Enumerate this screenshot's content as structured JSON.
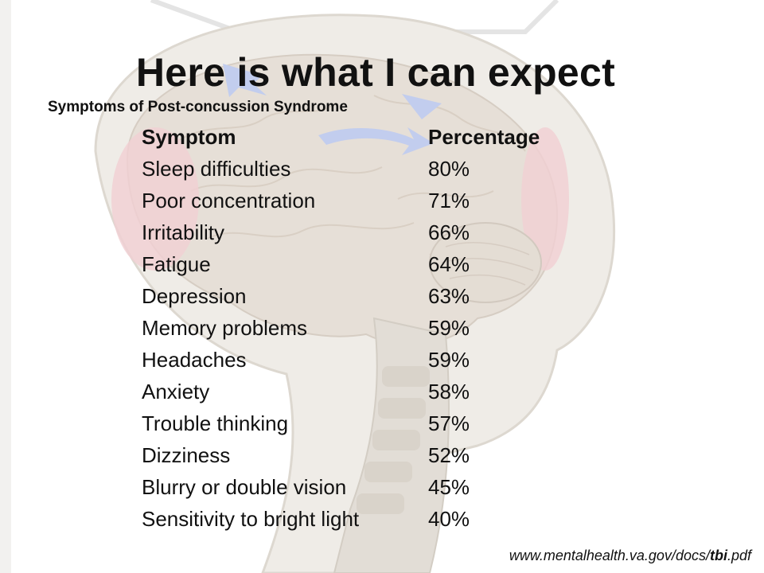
{
  "title": "Here is what I can expect",
  "subtitle": "Symptoms of Post-concussion Syndrome",
  "table": {
    "headers": {
      "symptom": "Symptom",
      "percentage": "Percentage"
    },
    "rows": [
      {
        "symptom": "Sleep difficulties",
        "percentage": "80%"
      },
      {
        "symptom": "Poor concentration",
        "percentage": "71%"
      },
      {
        "symptom": "Irritability",
        "percentage": "66%"
      },
      {
        "symptom": "Fatigue",
        "percentage": "64%"
      },
      {
        "symptom": "Depression",
        "percentage": "63%"
      },
      {
        "symptom": "Memory problems",
        "percentage": "59%"
      },
      {
        "symptom": "Headaches",
        "percentage": "59%"
      },
      {
        "symptom": "Anxiety",
        "percentage": "58%"
      },
      {
        "symptom": "Trouble thinking",
        "percentage": "57%"
      },
      {
        "symptom": "Dizziness",
        "percentage": "52%"
      },
      {
        "symptom": "Blurry or double vision",
        "percentage": "45%"
      },
      {
        "symptom": "Sensitivity to bright light",
        "percentage": "40%"
      }
    ]
  },
  "source": {
    "prefix": "www.mentalhealth.va.gov/docs/",
    "bold": "tbi",
    "suffix": ".pdf"
  },
  "colors": {
    "skull_fill": "#ece8e2",
    "brain_fill": "#e2dbd3",
    "bruise": "#efc4c9",
    "arrow": "#b8c6ec",
    "spine": "#d9d4cc"
  }
}
